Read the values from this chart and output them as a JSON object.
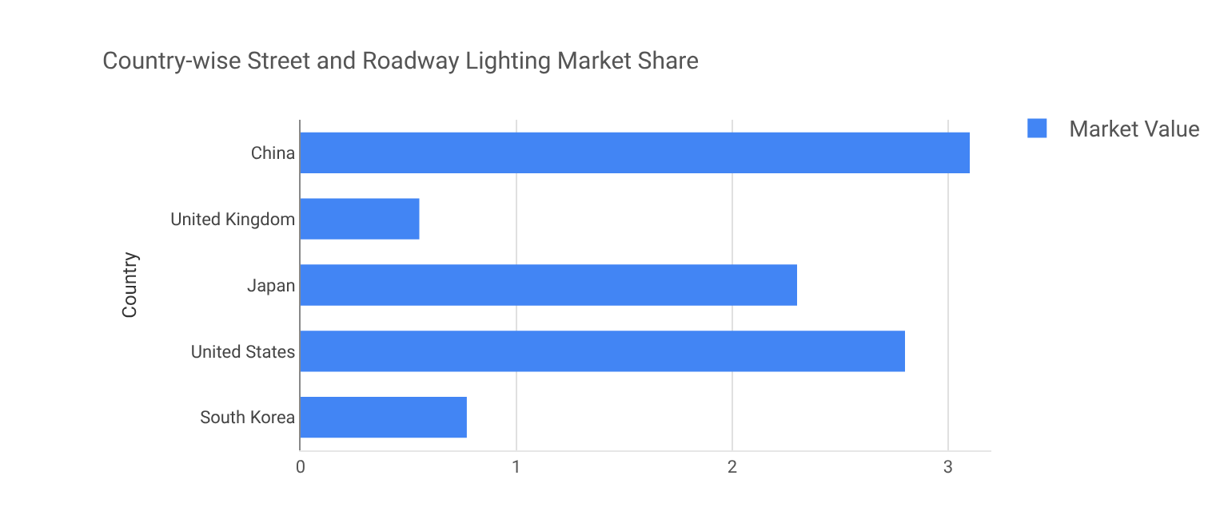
{
  "chart_data": {
    "type": "bar",
    "orientation": "horizontal",
    "title": "Country-wise Street and Roadway Lighting Market Share",
    "ylabel": "Country",
    "categories": [
      "China",
      "United Kingdom",
      "Japan",
      "United States",
      "South Korea"
    ],
    "series": [
      {
        "name": "Market Value",
        "color": "#4285f4",
        "values": [
          3.1,
          0.55,
          2.3,
          2.8,
          0.77
        ]
      }
    ],
    "xlim": [
      0,
      3.2
    ],
    "xticks": [
      0,
      1,
      2,
      3
    ],
    "grid": "x",
    "legend": "top right"
  }
}
